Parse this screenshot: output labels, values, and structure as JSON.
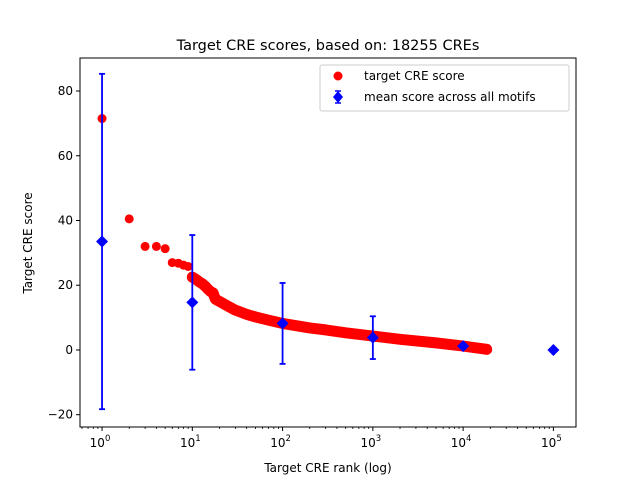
{
  "chart_data": {
    "type": "scatter",
    "title": "Target CRE scores, based on: 18255 CREs",
    "xlabel": "Target CRE rank (log)",
    "ylabel": "Target CRE score",
    "xscale": "log",
    "xlim": [
      0.57,
      178000
    ],
    "ylim": [
      -23.8,
      90.2
    ],
    "xticks": [
      1,
      10,
      100,
      1000,
      10000,
      100000
    ],
    "xtick_labels": [
      [
        "10",
        "0"
      ],
      [
        "10",
        "1"
      ],
      [
        "10",
        "2"
      ],
      [
        "10",
        "3"
      ],
      [
        "10",
        "4"
      ],
      [
        "10",
        "5"
      ]
    ],
    "yticks": [
      -20,
      0,
      20,
      40,
      60,
      80
    ],
    "ytick_labels": [
      "−20",
      "0",
      "20",
      "40",
      "60",
      "80"
    ],
    "grid": false,
    "legend_placement": "top-right",
    "series": [
      {
        "name": "target CRE score",
        "color": "#ff0000",
        "marker": "circle",
        "points": [
          [
            1,
            71.5
          ],
          [
            2,
            40.5
          ],
          [
            3,
            32
          ],
          [
            4,
            32
          ],
          [
            5,
            31.3
          ],
          [
            6,
            27
          ],
          [
            7,
            26.8
          ],
          [
            8,
            26.2
          ],
          [
            9,
            25.8
          ],
          [
            10,
            22.5
          ],
          [
            11,
            21.8
          ],
          [
            12,
            21
          ],
          [
            13,
            20.4
          ],
          [
            14,
            19.6
          ],
          [
            15,
            18.7
          ],
          [
            16,
            18
          ],
          [
            17,
            17.6
          ],
          [
            18,
            15.7
          ],
          [
            20,
            15
          ],
          [
            25,
            13.5
          ],
          [
            30,
            12.3
          ],
          [
            40,
            11
          ],
          [
            50,
            10.2
          ],
          [
            70,
            9.2
          ],
          [
            100,
            8.2
          ],
          [
            200,
            6.8
          ],
          [
            300,
            6.2
          ],
          [
            500,
            5.3
          ],
          [
            1000,
            4.3
          ],
          [
            2000,
            3.3
          ],
          [
            5000,
            2.2
          ],
          [
            10000,
            1.2
          ],
          [
            18255,
            0.2
          ]
        ]
      },
      {
        "name": "mean score across all motifs",
        "color": "#0000ff",
        "marker": "diamond",
        "points": [
          [
            1,
            33.5,
            51.8
          ],
          [
            10,
            14.7,
            20.8
          ],
          [
            100,
            8.2,
            12.5
          ],
          [
            1000,
            3.8,
            6.6
          ],
          [
            10000,
            1.2,
            0.6
          ],
          [
            100000,
            0,
            0
          ]
        ]
      }
    ]
  }
}
